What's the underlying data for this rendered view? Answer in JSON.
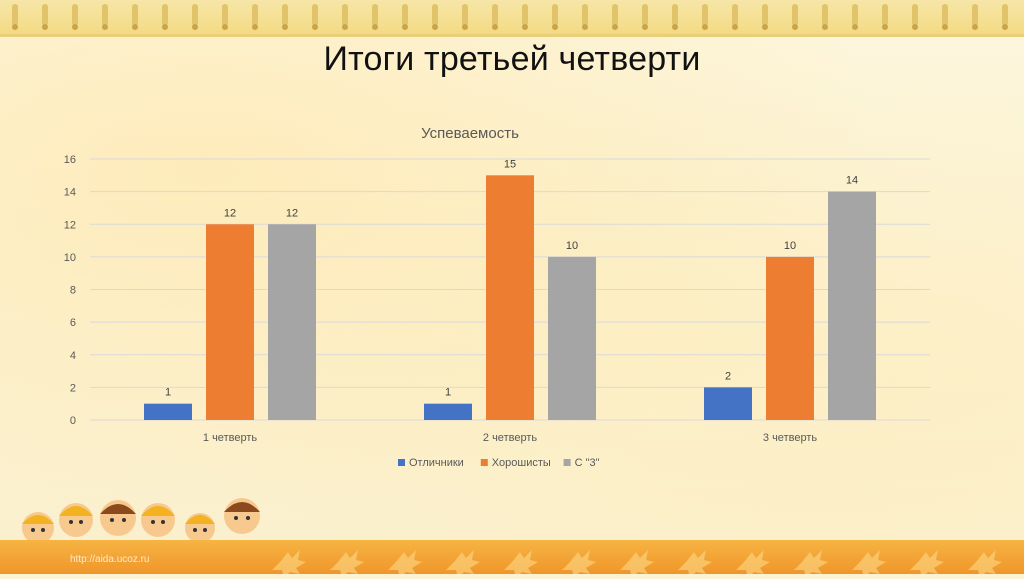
{
  "slide": {
    "title": "Итоги третьей четверти",
    "watermark": "http://aida.ucoz.ru"
  },
  "colors": {
    "series1": "#4472c4",
    "series2": "#ed7d31",
    "series3": "#a5a5a5",
    "grid": "#d9d9d9",
    "axis_text": "#595959"
  },
  "chart_data": {
    "type": "bar",
    "title": "Успеваемость",
    "categories": [
      "1 четверть",
      "2 четверть",
      "3 четверть"
    ],
    "series": [
      {
        "name": "Отличники",
        "values": [
          1,
          1,
          2
        ]
      },
      {
        "name": "Хорошисты",
        "values": [
          12,
          15,
          10
        ]
      },
      {
        "name": "С \"3\"",
        "values": [
          12,
          10,
          14
        ]
      }
    ],
    "ylim": [
      0,
      16
    ],
    "yticks": [
      0,
      2,
      4,
      6,
      8,
      10,
      12,
      14,
      16
    ],
    "grid": true,
    "legend": "bottom",
    "data_labels": true
  }
}
